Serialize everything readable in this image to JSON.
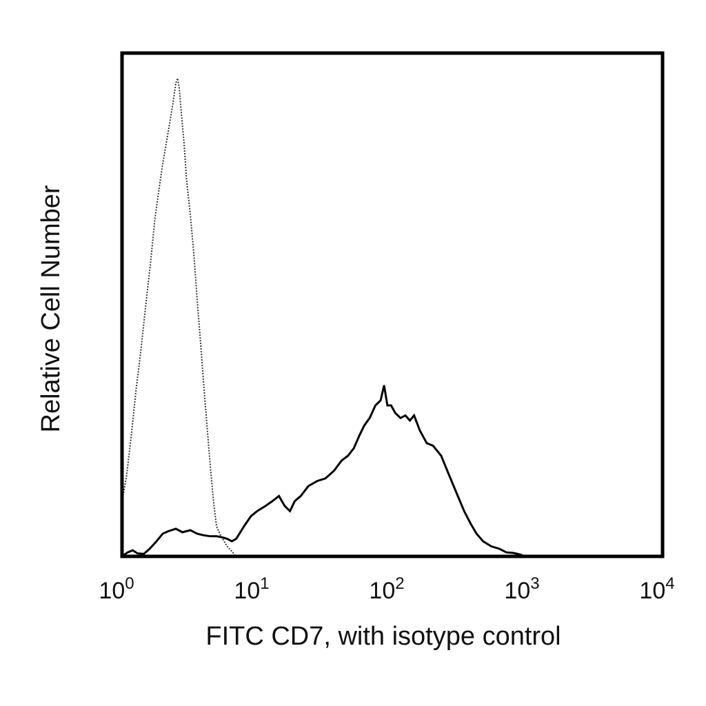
{
  "chart_data": {
    "type": "line",
    "title": "",
    "xlabel": "FITC CD7, with isotype control",
    "ylabel": "Relative Cell Number",
    "x_scale": "log",
    "xlim": [
      1,
      10000
    ],
    "ylim": [
      0,
      100
    ],
    "grid": false,
    "legend": "none",
    "x_ticks": [
      {
        "value": 1,
        "base": "10",
        "exp": "0"
      },
      {
        "value": 10,
        "base": "10",
        "exp": "1"
      },
      {
        "value": 100,
        "base": "10",
        "exp": "2"
      },
      {
        "value": 1000,
        "base": "10",
        "exp": "3"
      },
      {
        "value": 10000,
        "base": "10",
        "exp": "4"
      }
    ],
    "series": [
      {
        "style": "dotted",
        "color": "#333333",
        "points": [
          [
            1.0,
            11
          ],
          [
            1.08,
            16
          ],
          [
            1.17,
            24
          ],
          [
            1.27,
            33
          ],
          [
            1.38,
            41
          ],
          [
            1.5,
            50
          ],
          [
            1.62,
            58
          ],
          [
            1.75,
            67
          ],
          [
            1.88,
            73
          ],
          [
            2.0,
            78
          ],
          [
            2.12,
            82
          ],
          [
            2.25,
            86
          ],
          [
            2.38,
            90
          ],
          [
            2.5,
            94
          ],
          [
            2.58,
            95
          ],
          [
            2.65,
            93
          ],
          [
            2.75,
            88
          ],
          [
            2.88,
            82
          ],
          [
            3.0,
            75
          ],
          [
            3.2,
            68
          ],
          [
            3.4,
            60
          ],
          [
            3.6,
            51
          ],
          [
            3.8,
            43
          ],
          [
            4.0,
            35
          ],
          [
            4.25,
            26
          ],
          [
            4.5,
            18
          ],
          [
            4.75,
            11
          ],
          [
            5.0,
            6
          ],
          [
            5.4,
            4
          ],
          [
            6.0,
            2
          ],
          [
            6.5,
            1
          ],
          [
            7.0,
            0
          ]
        ]
      },
      {
        "style": "solid",
        "color": "#000000",
        "points": [
          [
            1.0,
            0
          ],
          [
            1.1,
            0.8
          ],
          [
            1.2,
            1.2
          ],
          [
            1.3,
            0.6
          ],
          [
            1.45,
            0.5
          ],
          [
            1.6,
            1.5
          ],
          [
            1.8,
            3
          ],
          [
            2.0,
            4.5
          ],
          [
            2.2,
            5
          ],
          [
            2.5,
            5.5
          ],
          [
            2.8,
            4.8
          ],
          [
            3.2,
            5.2
          ],
          [
            3.6,
            4.5
          ],
          [
            4.0,
            4.2
          ],
          [
            4.5,
            4
          ],
          [
            5.0,
            4
          ],
          [
            5.5,
            3.8
          ],
          [
            6.0,
            3.5
          ],
          [
            6.5,
            3
          ],
          [
            7.0,
            3.5
          ],
          [
            8.0,
            6
          ],
          [
            9.0,
            8
          ],
          [
            10.0,
            9
          ],
          [
            11.5,
            10
          ],
          [
            13.0,
            11
          ],
          [
            14.5,
            12
          ],
          [
            16.0,
            10
          ],
          [
            17.5,
            9
          ],
          [
            19.0,
            11
          ],
          [
            21.0,
            12
          ],
          [
            24.0,
            14
          ],
          [
            28.0,
            15
          ],
          [
            32.0,
            15.5
          ],
          [
            37.0,
            17
          ],
          [
            42.0,
            19
          ],
          [
            47.0,
            20
          ],
          [
            52.0,
            21.5
          ],
          [
            57.0,
            24
          ],
          [
            62.0,
            26
          ],
          [
            68.0,
            27.5
          ],
          [
            75.0,
            30
          ],
          [
            82.0,
            31
          ],
          [
            87.0,
            34
          ],
          [
            92.0,
            30
          ],
          [
            98.0,
            30
          ],
          [
            105.0,
            28.5
          ],
          [
            115.0,
            27.5
          ],
          [
            125.0,
            28
          ],
          [
            135.0,
            27
          ],
          [
            145.0,
            28
          ],
          [
            160.0,
            25
          ],
          [
            180.0,
            22.5
          ],
          [
            200.0,
            22
          ],
          [
            230.0,
            20
          ],
          [
            260.0,
            16.5
          ],
          [
            300.0,
            12.5
          ],
          [
            340.0,
            9
          ],
          [
            380.0,
            6.5
          ],
          [
            420.0,
            4.5
          ],
          [
            470.0,
            3
          ],
          [
            540.0,
            2
          ],
          [
            620.0,
            1.5
          ],
          [
            700.0,
            0.8
          ],
          [
            780.0,
            0.7
          ],
          [
            850.0,
            0.5
          ],
          [
            900.0,
            0.3
          ],
          [
            950.0,
            0
          ]
        ]
      }
    ]
  }
}
